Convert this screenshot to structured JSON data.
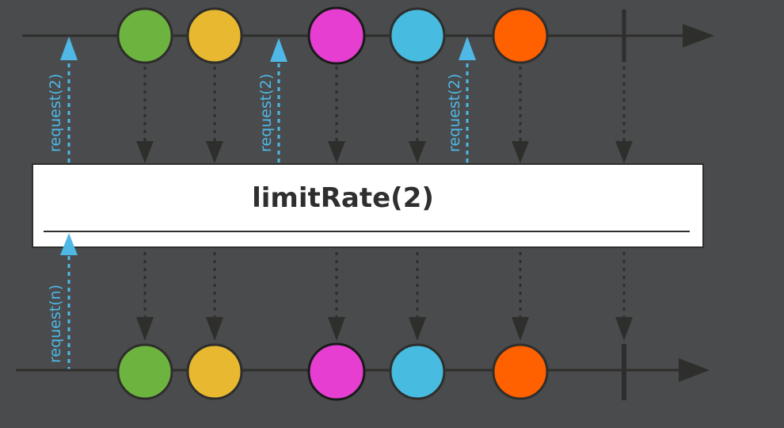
{
  "operator": {
    "label": "limitRate(2)"
  },
  "requests": {
    "upstream": [
      "request(2)",
      "request(2)",
      "request(2)"
    ],
    "downstream": "request(n)"
  },
  "elements": [
    {
      "name": "green",
      "color": "#6db33f"
    },
    {
      "name": "yellow",
      "color": "#e8b930"
    },
    {
      "name": "magenta",
      "color": "#e53ed1"
    },
    {
      "name": "blue",
      "color": "#47bbe0"
    },
    {
      "name": "orange",
      "color": "#ff6000"
    }
  ],
  "colors": {
    "background": "#4a4b4d",
    "line": "#2e2e2c",
    "request": "#4fb8e6",
    "box": "#ffffff"
  },
  "caption": ""
}
